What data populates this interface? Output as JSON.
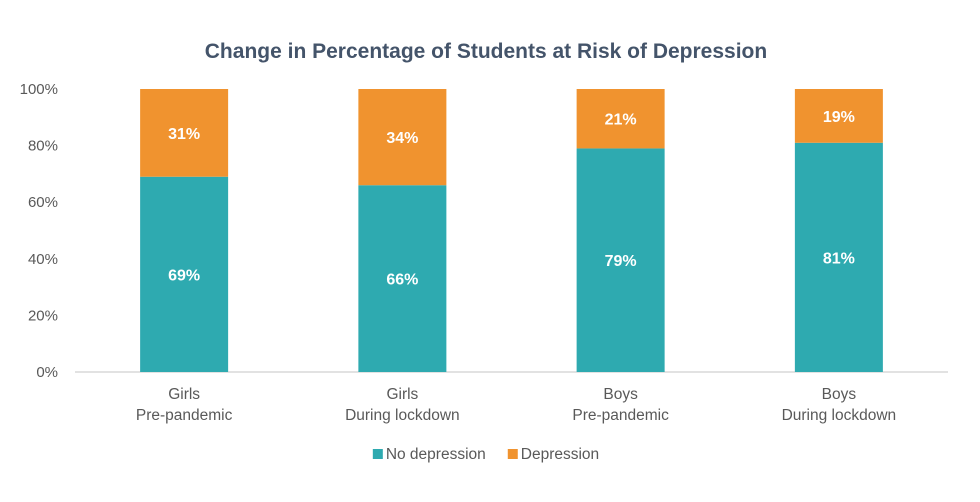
{
  "chart_data": {
    "type": "bar",
    "stacked": true,
    "title": "Change in Percentage of Students at Risk of Depression",
    "categories": [
      [
        "Girls",
        "Pre-pandemic"
      ],
      [
        "Girls",
        "During lockdown"
      ],
      [
        "Boys",
        "Pre-pandemic"
      ],
      [
        "Boys",
        "During lockdown"
      ]
    ],
    "series": [
      {
        "name": "No depression",
        "color": "#2eaab0",
        "values": [
          69,
          66,
          79,
          81
        ],
        "labels": [
          "69%",
          "66%",
          "79%",
          "81%"
        ]
      },
      {
        "name": "Depression",
        "color": "#f0932f",
        "values": [
          31,
          34,
          21,
          19
        ],
        "labels": [
          "31%",
          "34%",
          "21%",
          "19%"
        ]
      }
    ],
    "ylim": [
      0,
      100
    ],
    "yticks": [
      "0%",
      "20%",
      "40%",
      "60%",
      "80%",
      "100%"
    ],
    "grid": false,
    "legend_position": "bottom"
  }
}
